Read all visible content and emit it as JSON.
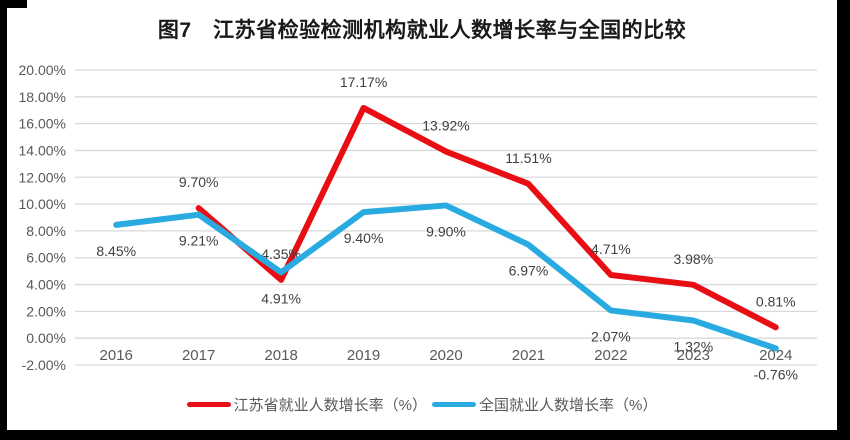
{
  "title": "图7　江苏省检验检测机构就业人数增长率与全国的比较",
  "chart_data": {
    "type": "line",
    "x": [
      "2016",
      "2017",
      "2018",
      "2019",
      "2020",
      "2021",
      "2022",
      "2023",
      "2024"
    ],
    "series": [
      {
        "name": "江苏省就业人数增长率（%）",
        "color": "#e90e14",
        "label_side": "above",
        "values": [
          null,
          9.7,
          4.35,
          17.17,
          13.92,
          11.51,
          4.71,
          3.98,
          0.81
        ],
        "labels": [
          null,
          "9.70%",
          "4.35%",
          "17.17%",
          "13.92%",
          "11.51%",
          "4.71%",
          "3.98%",
          "0.81%"
        ]
      },
      {
        "name": "全国就业人数增长率（%）",
        "color": "#29abe2",
        "label_side": "below",
        "values": [
          8.45,
          9.21,
          4.91,
          9.4,
          9.9,
          6.97,
          2.07,
          1.32,
          -0.76
        ],
        "labels": [
          "8.45%",
          "9.21%",
          "4.91%",
          "9.40%",
          "9.90%",
          "6.97%",
          "2.07%",
          "1.32%",
          "-0.76%"
        ]
      }
    ],
    "ylim": [
      -2,
      20
    ],
    "ytick_step": 2,
    "ytick_labels": [
      "20.00%",
      "18.00%",
      "16.00%",
      "14.00%",
      "12.00%",
      "10.00%",
      "8.00%",
      "6.00%",
      "4.00%",
      "2.00%",
      "0.00%",
      "-2.00%"
    ],
    "grid": true,
    "legend_position": "bottom"
  },
  "colors": {
    "background": "#ffffff",
    "grid": "#d9d9d9",
    "axis_text": "#595959",
    "data_label_text": "#404040",
    "title_text": "#1a1a1a",
    "border": "#000000"
  }
}
